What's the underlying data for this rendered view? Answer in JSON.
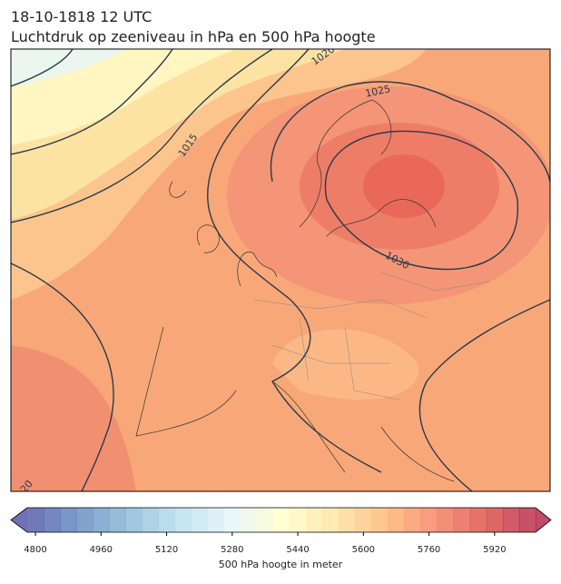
{
  "header": {
    "title": "18-10-1818 12 UTC",
    "subtitle": "Luchtdruk op zeeniveau in hPa en 500 hPa hoogte"
  },
  "map": {
    "contour_labels": [
      "1020",
      "1025",
      "1015",
      "1030",
      "20"
    ]
  },
  "colorbar": {
    "label": "500 hPa hoogte in meter",
    "lim": [
      4780,
      6020
    ],
    "step": 40,
    "ticks": [
      4800,
      4960,
      5120,
      5280,
      5440,
      5600,
      5760,
      5920
    ],
    "colormap": [
      "#313695",
      "#4575b4",
      "#74add1",
      "#abd9e9",
      "#e0f3f8",
      "#ffffbf",
      "#fee090",
      "#fdae61",
      "#f46d43",
      "#d73027",
      "#a50026"
    ]
  }
}
